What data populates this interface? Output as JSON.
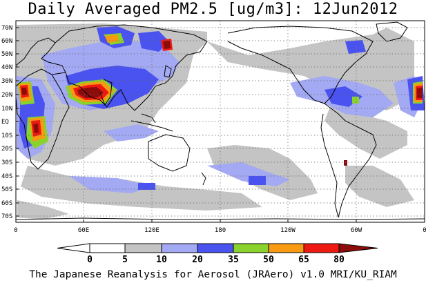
{
  "title": "Daily Averaged PM2.5 [ug/m3]: 12Jun2012",
  "footer": "The Japanese Reanalysis for Aerosol (JRAero) v1.0 MRI/KU_RIAM",
  "lat_labels": [
    "70N",
    "60N",
    "50N",
    "40N",
    "30N",
    "20N",
    "10N",
    "EQ",
    "10S",
    "20S",
    "30S",
    "40S",
    "50S",
    "60S",
    "70S"
  ],
  "lon_labels": [
    "0",
    "60E",
    "120E",
    "180",
    "120W",
    "60W",
    "0"
  ],
  "colorbar": {
    "labels": [
      "0",
      "5",
      "10",
      "20",
      "35",
      "50",
      "65",
      "80"
    ],
    "colors": [
      "#ffffff",
      "#ffffff",
      "#c4c4c4",
      "#a3a9f2",
      "#4a53f0",
      "#8ad22c",
      "#f89a12",
      "#ee1a12",
      "#8c0c0c"
    ]
  },
  "colors": {
    "level_5": "#c4c4c4",
    "level_10": "#a3a9f2",
    "level_20": "#4a53f0",
    "level_35": "#8ad22c",
    "level_50": "#f89a12",
    "level_65": "#ee1a12",
    "level_80": "#8c0c0c"
  }
}
